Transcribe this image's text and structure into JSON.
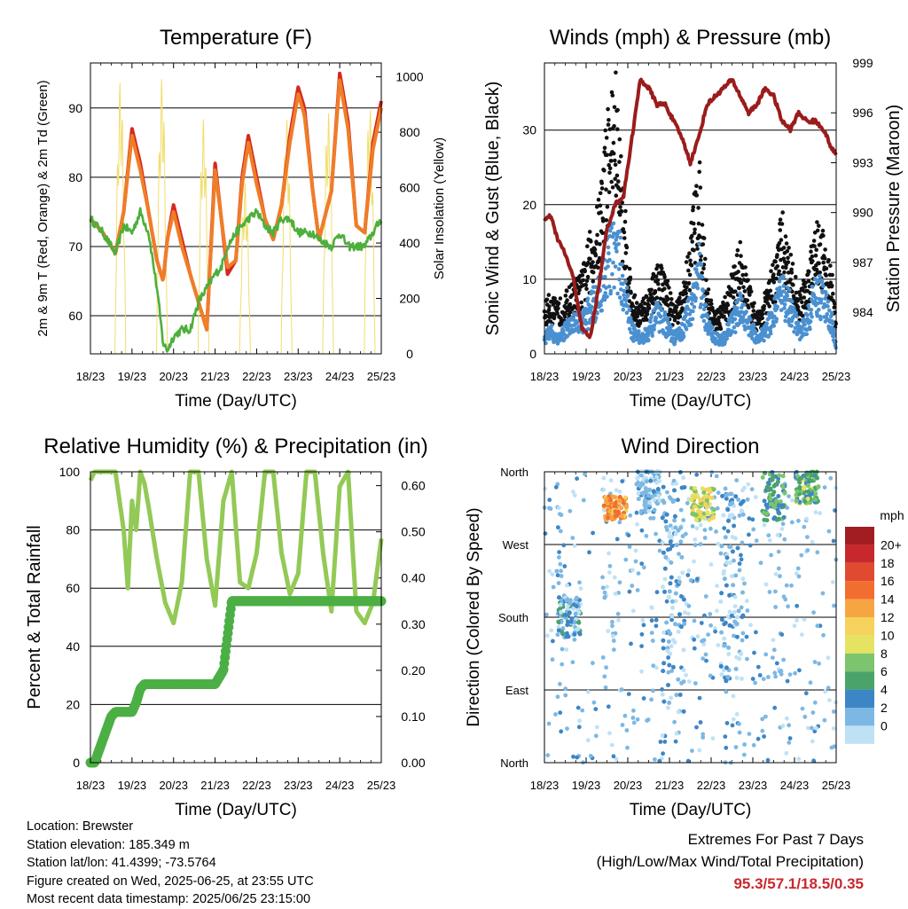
{
  "x_ticks": [
    "18/23",
    "19/23",
    "20/23",
    "21/23",
    "22/23",
    "23/23",
    "24/23",
    "25/23"
  ],
  "chart_data": [
    {
      "type": "line",
      "title": "Temperature (F)",
      "xlabel": "Time (Day/UTC)",
      "ylabel": "2m & 9m T (Red, Orange) & 2m Td (Green)",
      "y2label": "Solar Insolation (Yellow)",
      "ylim": [
        54.5,
        96.5
      ],
      "y2lim": [
        0,
        1050
      ],
      "yticks": [
        60,
        70,
        80,
        90
      ],
      "y2ticks": [
        0,
        200,
        400,
        600,
        800,
        1000
      ],
      "x_days": [
        0,
        0.3,
        0.6,
        0.8,
        1.0,
        1.2,
        1.4,
        1.6,
        1.75,
        1.85,
        2.0,
        2.2,
        2.4,
        2.6,
        2.8,
        3.0,
        3.15,
        3.3,
        3.5,
        3.65,
        3.8,
        4.0,
        4.2,
        4.4,
        4.6,
        4.8,
        5.0,
        5.15,
        5.35,
        5.5,
        5.8,
        6.0,
        6.2,
        6.4,
        6.6,
        6.8,
        7.0
      ],
      "series": [
        {
          "color": "#d32a1f",
          "values": [
            74,
            72,
            69,
            75,
            87,
            82,
            75,
            68,
            65,
            71,
            76,
            71,
            66,
            62,
            58,
            82,
            74,
            66,
            68,
            80,
            86,
            80,
            74,
            71,
            76,
            86,
            93,
            90,
            78,
            71,
            78,
            95,
            88,
            73,
            72,
            85,
            91
          ]
        },
        {
          "color": "#f07d27",
          "values": [
            74,
            72,
            69,
            75,
            86,
            81,
            75,
            68,
            65,
            71,
            75,
            70,
            66,
            62,
            58,
            81,
            74,
            67,
            68,
            79,
            85,
            79,
            74,
            71,
            76,
            85,
            92,
            89,
            78,
            71,
            78,
            94,
            87,
            73,
            72,
            84,
            90
          ]
        },
        {
          "color": "#4daf3c",
          "values": [
            74,
            72,
            69,
            73,
            72,
            75,
            72,
            64,
            56,
            55,
            57,
            58,
            58,
            62,
            64,
            66,
            67,
            70,
            72,
            73,
            74,
            75,
            73,
            72,
            74,
            74,
            72,
            72,
            72,
            71,
            70,
            72,
            70,
            70,
            70,
            72,
            74
          ]
        }
      ],
      "solar": {
        "color": "#f2dd6b",
        "values": [
          0,
          0,
          0,
          920,
          0,
          990,
          0,
          1000,
          0,
          0,
          850,
          0,
          950,
          0,
          820,
          0,
          620,
          0,
          850,
          0,
          720,
          0,
          880,
          0,
          800,
          0,
          870,
          0,
          700,
          0,
          900,
          0
        ]
      }
    },
    {
      "type": "scatter",
      "title": "Winds (mph) & Pressure (mb)",
      "xlabel": "Time (Day/UTC)",
      "ylabel": "Sonic Wind & Gust (Blue, Black)",
      "y2label": "Station Pressure (Maroon)",
      "ylim": [
        0,
        39
      ],
      "y2lim": [
        981.5,
        999
      ],
      "yticks": [
        0,
        10,
        20,
        30
      ],
      "y2ticks": [
        984,
        987,
        990,
        993,
        996,
        999
      ],
      "x_days": [
        0,
        0.15,
        0.3,
        0.5,
        0.7,
        0.9,
        1.1,
        1.3,
        1.5,
        1.7,
        1.9,
        2.1,
        2.3,
        2.5,
        2.7,
        2.9,
        3.1,
        3.3,
        3.5,
        3.7,
        3.9,
        4.1,
        4.3,
        4.5,
        4.7,
        4.9,
        5.1,
        5.3,
        5.5,
        5.7,
        5.9,
        6.1,
        6.3,
        6.5,
        6.7,
        6.9,
        7.0
      ],
      "gust": {
        "color": "#111111",
        "values": [
          5,
          6,
          5,
          6,
          7,
          8,
          12,
          15,
          24,
          28,
          16,
          6,
          5,
          6,
          9,
          8,
          5,
          6,
          12,
          20,
          7,
          4,
          5,
          8,
          11,
          7,
          4,
          6,
          9,
          14,
          10,
          6,
          8,
          14,
          12,
          8,
          3
        ]
      },
      "wind": {
        "color": "#4a90d0",
        "values": [
          2,
          3,
          2,
          3,
          4,
          4,
          6,
          8,
          12,
          15,
          9,
          3,
          2,
          3,
          5,
          4,
          2,
          3,
          6,
          11,
          4,
          2,
          2,
          4,
          6,
          4,
          2,
          3,
          5,
          8,
          6,
          3,
          4,
          8,
          7,
          4,
          1
        ]
      },
      "pressure": {
        "color": "#9b1c1c",
        "values": [
          989.5,
          989.8,
          988.5,
          987.5,
          986.0,
          983.0,
          982.5,
          985.5,
          989.0,
          990.5,
          991.0,
          994.5,
          998.0,
          997.5,
          996.5,
          996.5,
          995.5,
          994.5,
          993.0,
          994.5,
          996.5,
          997.0,
          997.5,
          998.0,
          997.0,
          996.0,
          996.5,
          997.5,
          997.0,
          995.5,
          995.0,
          996.0,
          995.5,
          995.5,
          995.0,
          993.8,
          993.5
        ]
      }
    },
    {
      "type": "line",
      "title": "Relative Humidity (%) & Precipitation (in)",
      "xlabel": "Time (Day/UTC)",
      "ylabel": "Percent & Total Rainfall",
      "ylim": [
        0,
        100
      ],
      "y2lim": [
        0,
        0.63
      ],
      "yticks": [
        0,
        20,
        40,
        60,
        80,
        100
      ],
      "y2ticks": [
        0.0,
        0.1,
        0.2,
        0.3,
        0.4,
        0.5,
        0.6
      ],
      "y2tick_labels": [
        "0.00",
        "0.10",
        "0.20",
        "0.30",
        "0.40",
        "0.50",
        "0.60"
      ],
      "x_days": [
        0,
        0.1,
        0.5,
        0.6,
        0.8,
        0.9,
        1.0,
        1.1,
        1.2,
        1.3,
        1.4,
        1.6,
        1.8,
        2.0,
        2.2,
        2.4,
        2.6,
        2.8,
        3.0,
        3.2,
        3.4,
        3.6,
        3.8,
        4.0,
        4.2,
        4.4,
        4.6,
        4.8,
        5.0,
        5.2,
        5.4,
        5.6,
        5.8,
        6.0,
        6.2,
        6.4,
        6.6,
        6.8,
        7.0
      ],
      "series": [
        {
          "color": "#93c956",
          "values": [
            97,
            100,
            100,
            100,
            80,
            60,
            90,
            80,
            100,
            96,
            88,
            70,
            55,
            48,
            62,
            100,
            100,
            70,
            54,
            90,
            100,
            62,
            60,
            72,
            100,
            100,
            72,
            58,
            65,
            100,
            100,
            72,
            52,
            95,
            100,
            52,
            48,
            55,
            77
          ]
        },
        {
          "color": "#4caf45",
          "precip_values": [
            0,
            0,
            0.1,
            0.11,
            0.11,
            0.11,
            0.11,
            0.13,
            0.16,
            0.17,
            0.17,
            0.17,
            0.17,
            0.17,
            0.17,
            0.17,
            0.17,
            0.17,
            0.17,
            0.2,
            0.35,
            0.35,
            0.35,
            0.35,
            0.35,
            0.35,
            0.35,
            0.35,
            0.35,
            0.35,
            0.35,
            0.35,
            0.35,
            0.35,
            0.35,
            0.35,
            0.35,
            0.35,
            0.35
          ]
        }
      ]
    },
    {
      "type": "scatter",
      "title": "Wind Direction",
      "xlabel": "Time (Day/UTC)",
      "ylabel": "Direction (Colored By Speed)",
      "yticks": [
        0,
        90,
        180,
        270,
        360
      ],
      "ytick_labels": [
        "North",
        "East",
        "South",
        "West",
        "North"
      ],
      "ylim": [
        0,
        360
      ],
      "colorbar_label": "mph",
      "colorbar_ticks": [
        "20+",
        "18",
        "16",
        "14",
        "12",
        "10",
        "8",
        "6",
        "4",
        "2",
        "0"
      ],
      "colorbar_colors": [
        "#a11d21",
        "#c8282d",
        "#e04a2e",
        "#f26d30",
        "#f7a543",
        "#f5d35c",
        "#e5e362",
        "#7cc46d",
        "#4aa36a",
        "#3d86c6",
        "#7cb8e3",
        "#bfe1f5"
      ],
      "clusters": [
        {
          "day": 0.6,
          "dir": 180,
          "spread_dir": 25,
          "speed": 3
        },
        {
          "day": 1.7,
          "dir": 315,
          "spread_dir": 15,
          "speed": 14
        },
        {
          "day": 2.5,
          "dir": 340,
          "spread_dir": 30,
          "speed": 2
        },
        {
          "day": 3.1,
          "dir": 210,
          "spread_dir": 150,
          "speed": 2
        },
        {
          "day": 3.8,
          "dir": 320,
          "spread_dir": 20,
          "speed": 10
        },
        {
          "day": 4.5,
          "dir": 220,
          "spread_dir": 120,
          "speed": 2
        },
        {
          "day": 5.5,
          "dir": 330,
          "spread_dir": 30,
          "speed": 6
        },
        {
          "day": 6.3,
          "dir": 340,
          "spread_dir": 20,
          "speed": 7
        }
      ]
    }
  ],
  "footer": {
    "location": "Location: Brewster",
    "elevation": "Station elevation: 185.349 m",
    "latlon": "Station lat/lon: 41.4399; -73.5764",
    "created": "Figure created on Wed, 2025-06-25, at 23:55 UTC",
    "recent": "Most recent data timestamp: 2025/06/25 23:15:00"
  },
  "extremes": {
    "line1": "Extremes For Past 7 Days",
    "line2": "(High/Low/Max Wind/Total Precipitation)",
    "values": "95.3/57.1/18.5/0.35"
  }
}
